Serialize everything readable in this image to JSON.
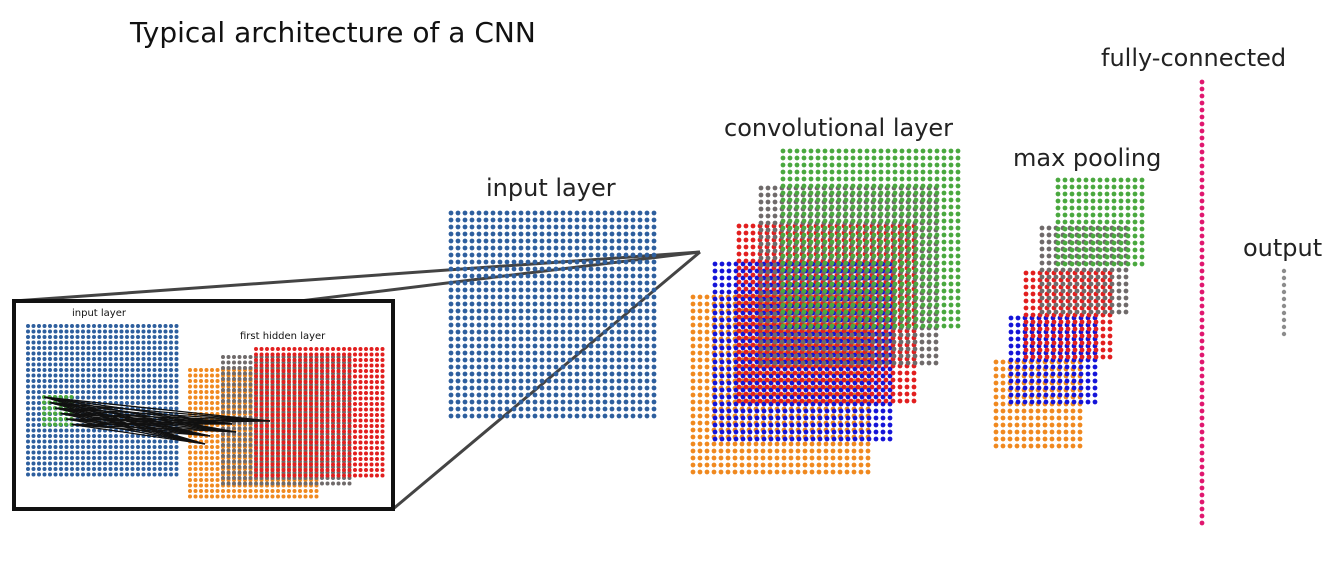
{
  "title": "Typical architecture of a CNN",
  "labels": {
    "input_layer": "input layer",
    "convolutional_layer": "convolutional layer",
    "max_pooling": "max pooling",
    "fully_connected": "fully-connected",
    "output": "output"
  },
  "inset": {
    "input_layer": "input layer",
    "first_hidden_layer": "first hidden layer"
  },
  "colors": {
    "input": "#2e5f9e",
    "green": "#4aa83f",
    "gray": "#6f6a6a",
    "red": "#e21f1f",
    "blue": "#1414d8",
    "orange": "#f0891f",
    "fc": "#e0176f",
    "output": "#8c8c8c",
    "border": "#111111",
    "connector": "#444444"
  }
}
